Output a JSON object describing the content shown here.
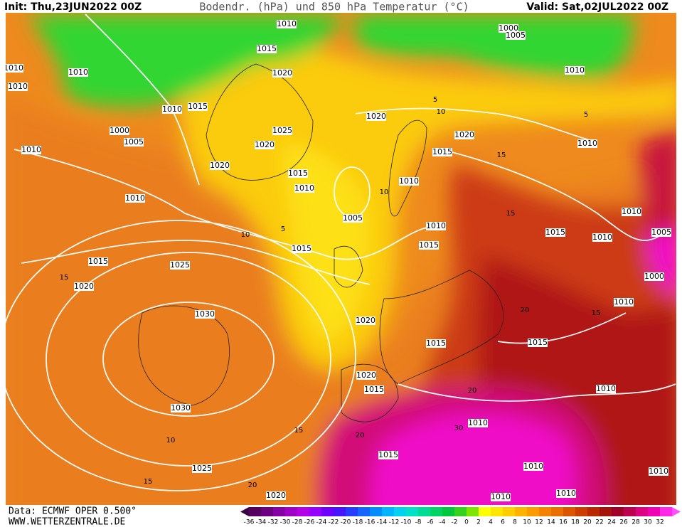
{
  "header": {
    "init": "Init: Thu,23JUN2022 00Z",
    "title": "Bodendr. (hPa) und 850 hPa Temperatur (°C)",
    "valid": "Valid: Sat,02JUL2022 00Z"
  },
  "map": {
    "isobar_labels": [
      "1010",
      "1000",
      "1005",
      "1015",
      "1010",
      "1010",
      "1020",
      "1010",
      "1010",
      "1010",
      "1015",
      "1020",
      "1000",
      "1025",
      "1020",
      "1005",
      "1020",
      "1010",
      "1010",
      "1015",
      "1020",
      "1015",
      "1010",
      "1010",
      "1010",
      "1010",
      "1005",
      "1010",
      "1015",
      "1010",
      "1005",
      "1015",
      "1015",
      "1015",
      "1025",
      "1000",
      "1020",
      "1010",
      "1030",
      "1020",
      "1015",
      "1015",
      "1020",
      "1015",
      "1010",
      "1030",
      "1010",
      "1015",
      "1025",
      "1010",
      "1010",
      "1010",
      "1010",
      "1020"
    ],
    "temperature_labels": [
      "5",
      "10",
      "15",
      "15",
      "10",
      "5",
      "10",
      "15",
      "15",
      "20",
      "20",
      "30",
      "15",
      "20",
      "15",
      "20",
      "10",
      "5"
    ]
  },
  "footer": {
    "source": "Data: ECMWF OPER 0.500°",
    "website": "WWW.WETTERZENTRALE.DE"
  },
  "colorbar": {
    "labels": [
      -36,
      -34,
      -32,
      -30,
      -28,
      -26,
      -24,
      -22,
      -20,
      -18,
      -16,
      -14,
      -12,
      -10,
      -8,
      -6,
      -4,
      -2,
      0,
      2,
      4,
      6,
      8,
      10,
      12,
      14,
      16,
      18,
      20,
      22,
      24,
      26,
      28,
      30,
      32
    ]
  }
}
